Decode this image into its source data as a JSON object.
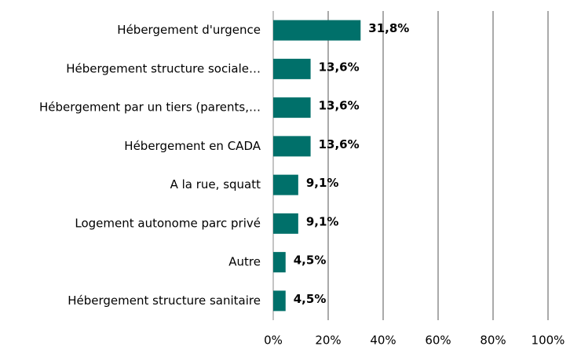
{
  "chart_data": {
    "type": "hbar",
    "categories": [
      "Hébergement d'urgence",
      "Hébergement structure sociale…",
      "Hébergement par un tiers (parents,…",
      "Hébergement en CADA",
      "A la rue, squatt",
      "Logement autonome parc privé",
      "Autre",
      "Hébergement structure sanitaire"
    ],
    "values": [
      31.8,
      13.6,
      13.6,
      13.6,
      9.1,
      9.1,
      4.5,
      4.5
    ],
    "value_labels": [
      "31,8%",
      "13,6%",
      "13,6%",
      "13,6%",
      "9,1%",
      "9,1%",
      "4,5%",
      "4,5%"
    ],
    "color": "#00706a",
    "xlim": [
      0,
      100
    ],
    "xticks": [
      {
        "value": 0,
        "label": "0%"
      },
      {
        "value": 20,
        "label": "20%"
      },
      {
        "value": 40,
        "label": "40%"
      },
      {
        "value": 60,
        "label": "60%"
      },
      {
        "value": 80,
        "label": "80%"
      },
      {
        "value": 100,
        "label": "100%"
      }
    ],
    "grid": true
  }
}
